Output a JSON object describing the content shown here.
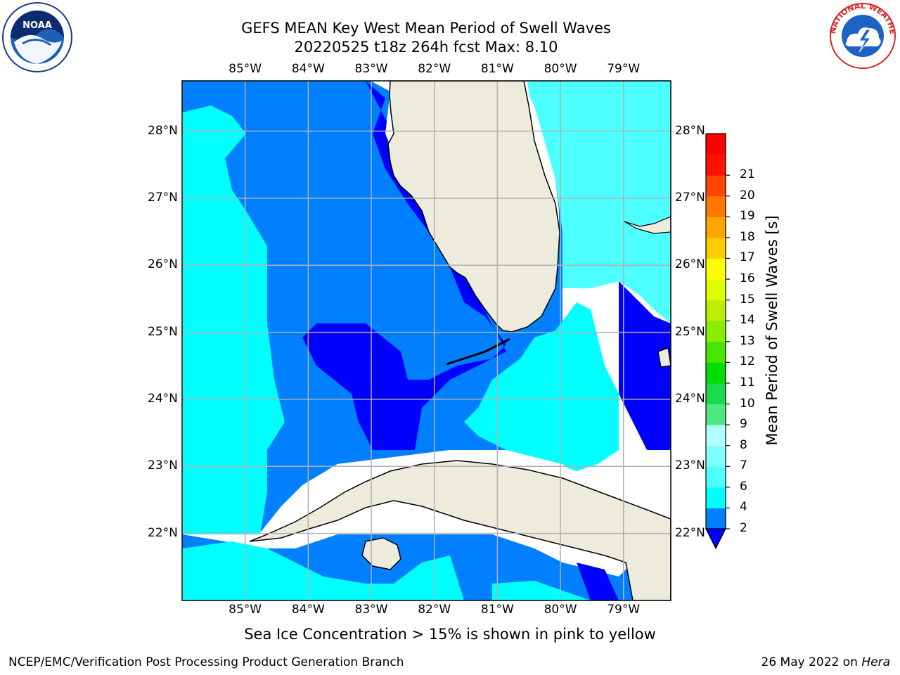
{
  "title": {
    "line1": "GEFS MEAN Key West Mean Period of Swell Waves",
    "line2": "20220525 t18z 264h fcst   Max: 8.10"
  },
  "logos": {
    "left": {
      "name": "NOAA",
      "text": "NOAA"
    },
    "right": {
      "name": "NATIONAL WEATHER SERVICE"
    }
  },
  "map": {
    "lon_labels": [
      "85°W",
      "84°W",
      "83°W",
      "82°W",
      "81°W",
      "80°W",
      "79°W"
    ],
    "lat_labels": [
      "28°N",
      "27°N",
      "26°N",
      "25°N",
      "24°N",
      "23°N",
      "22°N"
    ],
    "extent": {
      "lon": [
        -86.0,
        -78.25
      ],
      "lat": [
        21.0,
        28.75
      ]
    },
    "colors": {
      "land": "#ecebdc",
      "no_data": "#ffffff",
      "band_2_4": "#0080ff",
      "band_below_2": "#0000ff",
      "band_4_6": "#00ffff",
      "band_6_8": "#4dffff",
      "grid": "#b0b0b0"
    }
  },
  "colorbar": {
    "title": "Mean Period of Swell Waves [s]",
    "ticks": [
      "2",
      "4",
      "6",
      "7",
      "8",
      "9",
      "10",
      "11",
      "12",
      "13",
      "14",
      "15",
      "16",
      "17",
      "18",
      "19",
      "20",
      "21"
    ],
    "colors": [
      "#0080ff",
      "#00ffff",
      "#4dffff",
      "#80ffff",
      "#b3ffff",
      "#4de680",
      "#1ad94d",
      "#00dd00",
      "#44e600",
      "#88ee00",
      "#bbee00",
      "#ddff00",
      "#ffff00",
      "#ffcc00",
      "#ffa500",
      "#ff7700",
      "#ff4400",
      "#ff1100",
      "#ff0000"
    ],
    "under_color": "#0000ff"
  },
  "footer": {
    "note": "Sea Ice Concentration > 15% is shown in pink to yellow",
    "left": "NCEP/EMC/Verification Post Processing Product Generation Branch",
    "right_date": "26 May 2022 on ",
    "right_host": "Hera"
  }
}
